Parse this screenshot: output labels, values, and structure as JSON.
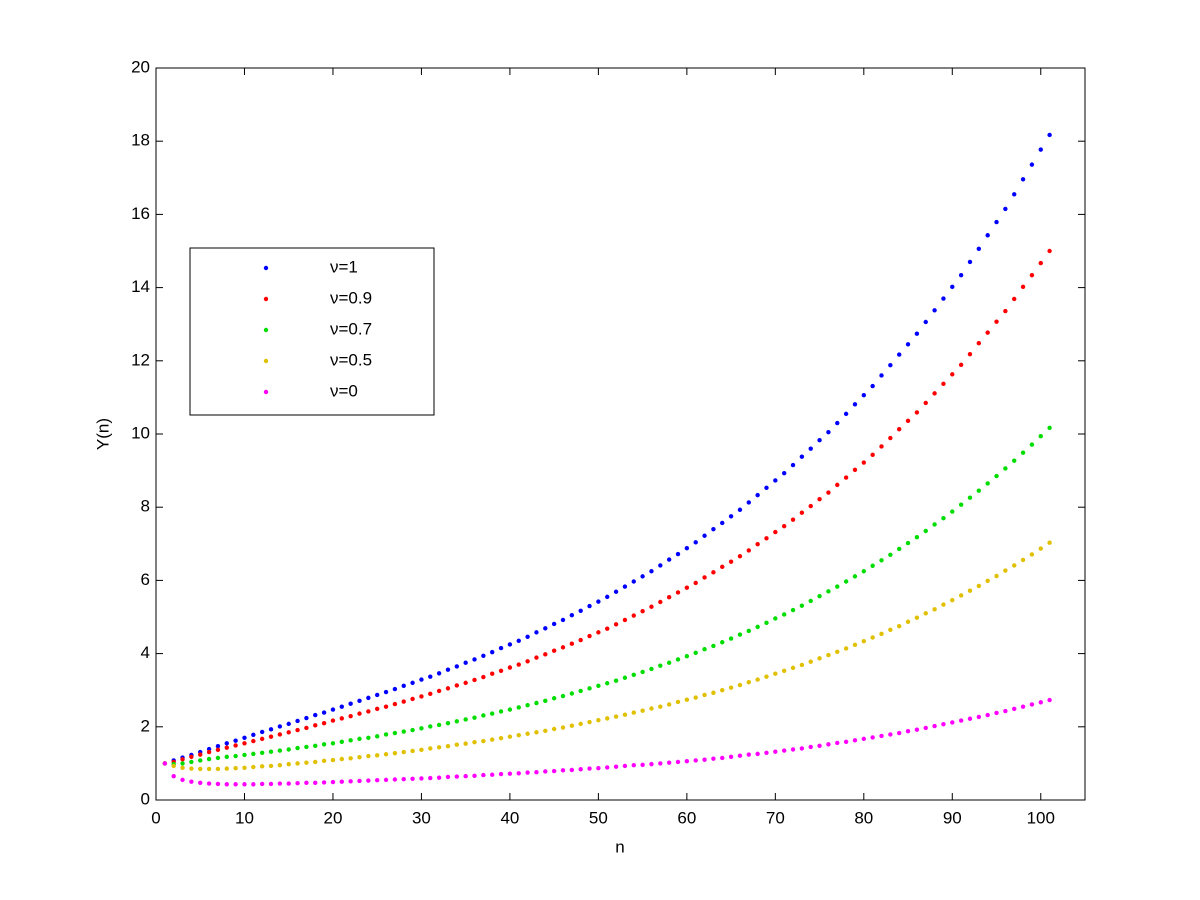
{
  "chart_data": {
    "type": "scatter",
    "x_label": "n",
    "y_label": "Y(n)",
    "xlim": [
      0,
      105
    ],
    "xticks": [
      0,
      10,
      20,
      30,
      40,
      50,
      60,
      70,
      80,
      90,
      100
    ],
    "ylim": [
      0,
      20
    ],
    "yticks": [
      0,
      2,
      4,
      6,
      8,
      10,
      12,
      14,
      16,
      18,
      20
    ],
    "legend": "upper left",
    "grid": false,
    "x": [
      1,
      2,
      3,
      4,
      5,
      6,
      7,
      8,
      9,
      10,
      11,
      12,
      13,
      14,
      15,
      16,
      17,
      18,
      19,
      20,
      21,
      22,
      23,
      24,
      25,
      26,
      27,
      28,
      29,
      30,
      31,
      32,
      33,
      34,
      35,
      36,
      37,
      38,
      39,
      40,
      41,
      42,
      43,
      44,
      45,
      46,
      47,
      48,
      49,
      50,
      51,
      52,
      53,
      54,
      55,
      56,
      57,
      58,
      59,
      60,
      61,
      62,
      63,
      64,
      65,
      66,
      67,
      68,
      69,
      70,
      71,
      72,
      73,
      74,
      75,
      76,
      77,
      78,
      79,
      80,
      81,
      82,
      83,
      84,
      85,
      86,
      87,
      88,
      89,
      90,
      91,
      92,
      93,
      94,
      95,
      96,
      97,
      98,
      99,
      100,
      101
    ],
    "series": [
      {
        "name": "ν=1",
        "color": "#0000ff",
        "values": [
          1.0,
          1.08,
          1.16,
          1.23,
          1.31,
          1.39,
          1.47,
          1.55,
          1.62,
          1.7,
          1.78,
          1.86,
          1.93,
          2.01,
          2.08,
          2.16,
          2.24,
          2.32,
          2.39,
          2.47,
          2.55,
          2.63,
          2.71,
          2.79,
          2.87,
          2.95,
          3.03,
          3.12,
          3.2,
          3.29,
          3.37,
          3.46,
          3.56,
          3.65,
          3.75,
          3.84,
          3.94,
          4.04,
          4.15,
          4.25,
          4.35,
          4.46,
          4.58,
          4.69,
          4.81,
          4.92,
          5.05,
          5.17,
          5.3,
          5.42,
          5.55,
          5.69,
          5.83,
          5.97,
          6.11,
          6.25,
          6.41,
          6.57,
          6.72,
          6.88,
          7.04,
          7.22,
          7.4,
          7.57,
          7.75,
          7.93,
          8.13,
          8.33,
          8.53,
          8.73,
          8.93,
          9.15,
          9.38,
          9.6,
          9.83,
          10.05,
          10.3,
          10.55,
          10.81,
          11.06,
          11.31,
          11.6,
          11.88,
          12.17,
          12.45,
          12.74,
          13.06,
          13.38,
          13.7,
          14.02,
          14.34,
          14.7,
          15.06,
          15.43,
          15.79,
          16.15,
          16.55,
          16.96,
          17.36,
          17.77,
          18.17
        ]
      },
      {
        "name": "ν=0.9",
        "color": "#ff0000",
        "values": [
          1.0,
          1.04,
          1.11,
          1.18,
          1.24,
          1.31,
          1.37,
          1.43,
          1.49,
          1.55,
          1.61,
          1.67,
          1.73,
          1.79,
          1.85,
          1.91,
          1.97,
          2.04,
          2.1,
          2.17,
          2.23,
          2.29,
          2.36,
          2.42,
          2.49,
          2.55,
          2.62,
          2.69,
          2.76,
          2.83,
          2.9,
          2.98,
          3.05,
          3.13,
          3.2,
          3.28,
          3.36,
          3.45,
          3.53,
          3.62,
          3.7,
          3.79,
          3.89,
          3.98,
          4.08,
          4.17,
          4.27,
          4.37,
          4.48,
          4.58,
          4.68,
          4.8,
          4.92,
          5.04,
          5.16,
          5.28,
          5.41,
          5.54,
          5.67,
          5.8,
          5.93,
          6.08,
          6.22,
          6.37,
          6.51,
          6.66,
          6.82,
          6.99,
          7.15,
          7.32,
          7.48,
          7.66,
          7.85,
          8.03,
          8.22,
          8.4,
          8.61,
          8.81,
          9.02,
          9.22,
          9.43,
          9.66,
          9.89,
          10.13,
          10.36,
          10.59,
          10.85,
          11.11,
          11.37,
          11.63,
          11.89,
          12.18,
          12.48,
          12.77,
          13.07,
          13.36,
          13.69,
          14.02,
          14.34,
          14.67,
          15.0
        ]
      },
      {
        "name": "ν=0.7",
        "color": "#00dd00",
        "values": [
          1.0,
          0.98,
          1.0,
          1.04,
          1.08,
          1.12,
          1.15,
          1.18,
          1.2,
          1.23,
          1.26,
          1.29,
          1.32,
          1.35,
          1.38,
          1.42,
          1.45,
          1.48,
          1.52,
          1.55,
          1.59,
          1.63,
          1.67,
          1.7,
          1.74,
          1.79,
          1.83,
          1.87,
          1.91,
          1.96,
          2.01,
          2.05,
          2.1,
          2.15,
          2.2,
          2.25,
          2.31,
          2.36,
          2.42,
          2.47,
          2.53,
          2.59,
          2.65,
          2.71,
          2.78,
          2.84,
          2.91,
          2.98,
          3.05,
          3.12,
          3.19,
          3.26,
          3.34,
          3.42,
          3.5,
          3.58,
          3.67,
          3.75,
          3.84,
          3.93,
          4.02,
          4.12,
          4.21,
          4.31,
          4.41,
          4.52,
          4.62,
          4.73,
          4.84,
          4.96,
          5.07,
          5.19,
          5.31,
          5.44,
          5.57,
          5.7,
          5.83,
          5.97,
          6.11,
          6.25,
          6.4,
          6.55,
          6.7,
          6.86,
          7.02,
          7.18,
          7.35,
          7.53,
          7.7,
          7.88,
          8.07,
          8.26,
          8.45,
          8.65,
          8.85,
          9.06,
          9.27,
          9.49,
          9.71,
          9.94,
          10.17
        ]
      },
      {
        "name": "ν=0.5",
        "color": "#e0c000",
        "values": [
          1.0,
          0.93,
          0.88,
          0.86,
          0.85,
          0.85,
          0.85,
          0.86,
          0.87,
          0.88,
          0.9,
          0.92,
          0.93,
          0.95,
          0.98,
          1.0,
          1.02,
          1.04,
          1.07,
          1.09,
          1.12,
          1.14,
          1.17,
          1.2,
          1.22,
          1.25,
          1.28,
          1.31,
          1.34,
          1.37,
          1.41,
          1.44,
          1.47,
          1.51,
          1.54,
          1.58,
          1.61,
          1.65,
          1.69,
          1.73,
          1.77,
          1.81,
          1.85,
          1.89,
          1.94,
          1.98,
          2.03,
          2.08,
          2.13,
          2.18,
          2.23,
          2.28,
          2.33,
          2.39,
          2.44,
          2.5,
          2.55,
          2.61,
          2.68,
          2.74,
          2.8,
          2.87,
          2.93,
          3.0,
          3.07,
          3.14,
          3.22,
          3.29,
          3.37,
          3.45,
          3.53,
          3.61,
          3.69,
          3.78,
          3.87,
          3.96,
          4.05,
          4.14,
          4.24,
          4.34,
          4.44,
          4.54,
          4.65,
          4.75,
          4.87,
          4.98,
          5.1,
          5.21,
          5.34,
          5.46,
          5.59,
          5.72,
          5.85,
          5.99,
          6.12,
          6.27,
          6.41,
          6.56,
          6.71,
          6.87,
          7.03
        ]
      },
      {
        "name": "ν=0",
        "color": "#ff00ff",
        "values": [
          1.0,
          0.65,
          0.55,
          0.5,
          0.47,
          0.45,
          0.44,
          0.43,
          0.43,
          0.43,
          0.43,
          0.44,
          0.44,
          0.45,
          0.45,
          0.46,
          0.47,
          0.47,
          0.48,
          0.49,
          0.5,
          0.51,
          0.52,
          0.53,
          0.54,
          0.55,
          0.56,
          0.57,
          0.58,
          0.59,
          0.6,
          0.61,
          0.63,
          0.64,
          0.65,
          0.66,
          0.68,
          0.69,
          0.71,
          0.72,
          0.73,
          0.75,
          0.76,
          0.78,
          0.79,
          0.81,
          0.82,
          0.84,
          0.86,
          0.87,
          0.89,
          0.91,
          0.93,
          0.95,
          0.96,
          0.98,
          1.0,
          1.02,
          1.04,
          1.06,
          1.08,
          1.1,
          1.13,
          1.15,
          1.18,
          1.21,
          1.24,
          1.26,
          1.29,
          1.32,
          1.35,
          1.38,
          1.41,
          1.45,
          1.48,
          1.52,
          1.56,
          1.59,
          1.63,
          1.67,
          1.71,
          1.75,
          1.79,
          1.83,
          1.88,
          1.92,
          1.97,
          2.02,
          2.07,
          2.12,
          2.17,
          2.22,
          2.27,
          2.32,
          2.38,
          2.43,
          2.49,
          2.55,
          2.61,
          2.67,
          2.73
        ]
      }
    ]
  }
}
